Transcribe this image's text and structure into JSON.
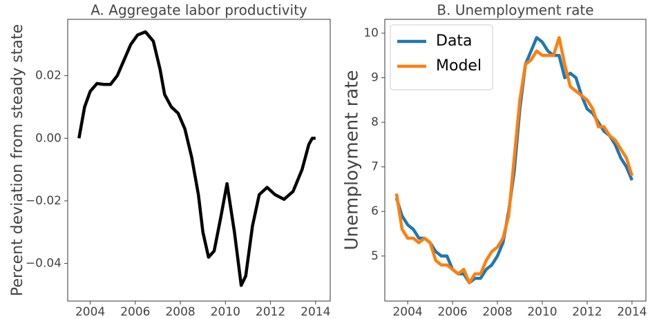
{
  "chart_data": [
    {
      "type": "line",
      "title": "A. Aggregate labor productivity",
      "ylabel": "Percent deviation from steady state",
      "x": [
        2003.5,
        2003.75,
        2004.0,
        2004.3,
        2004.6,
        2004.9,
        2005.2,
        2005.5,
        2005.8,
        2006.1,
        2006.45,
        2006.8,
        2007.1,
        2007.3,
        2007.6,
        2007.9,
        2008.2,
        2008.5,
        2008.8,
        2009.0,
        2009.25,
        2009.5,
        2009.8,
        2010.07,
        2010.4,
        2010.7,
        2010.9,
        2011.2,
        2011.5,
        2011.85,
        2012.2,
        2012.6,
        2013.0,
        2013.4,
        2013.7,
        2013.85,
        2014.0
      ],
      "values": [
        0.0,
        0.01,
        0.015,
        0.0175,
        0.0172,
        0.0172,
        0.02,
        0.025,
        0.03,
        0.033,
        0.034,
        0.031,
        0.022,
        0.014,
        0.01,
        0.008,
        0.003,
        -0.006,
        -0.018,
        -0.03,
        -0.038,
        -0.036,
        -0.025,
        -0.0145,
        -0.03,
        -0.047,
        -0.044,
        -0.028,
        -0.018,
        -0.0157,
        -0.018,
        -0.0195,
        -0.017,
        -0.01,
        -0.002,
        0.0,
        0.0
      ],
      "color": "#000000",
      "xlim": [
        2003.0,
        2014.65
      ],
      "ylim": [
        -0.052,
        0.038
      ],
      "xticks": [
        2004,
        2006,
        2008,
        2010,
        2012,
        2014
      ],
      "yticks": [
        {
          "value": -0.04,
          "label": "−0.04"
        },
        {
          "value": -0.02,
          "label": "−0.02"
        },
        {
          "value": 0,
          "label": "0.00"
        },
        0.02
      ]
    },
    {
      "type": "line",
      "title": "B. Unemployment rate",
      "ylabel": "Unemployment rate",
      "x": [
        2003.5,
        2003.75,
        2004.0,
        2004.25,
        2004.5,
        2004.75,
        2005.0,
        2005.25,
        2005.5,
        2005.75,
        2006.0,
        2006.25,
        2006.5,
        2006.75,
        2007.0,
        2007.25,
        2007.5,
        2007.75,
        2008.0,
        2008.25,
        2008.5,
        2008.75,
        2009.0,
        2009.25,
        2009.5,
        2009.75,
        2010.0,
        2010.25,
        2010.5,
        2010.75,
        2011.0,
        2011.25,
        2011.5,
        2011.75,
        2012.0,
        2012.25,
        2012.5,
        2012.75,
        2013.0,
        2013.25,
        2013.5,
        2013.75,
        2014.0
      ],
      "series": [
        {
          "name": "Data",
          "color": "#1f77b4",
          "values": [
            6.3,
            5.9,
            5.7,
            5.6,
            5.4,
            5.4,
            5.3,
            5.1,
            5.0,
            5.0,
            4.7,
            4.6,
            4.6,
            4.4,
            4.5,
            4.5,
            4.7,
            4.8,
            5.0,
            5.3,
            6.0,
            6.9,
            8.3,
            9.3,
            9.6,
            9.9,
            9.8,
            9.6,
            9.5,
            9.5,
            9.0,
            9.1,
            9.0,
            8.6,
            8.3,
            8.2,
            8.0,
            7.8,
            7.7,
            7.5,
            7.2,
            7.0,
            6.7
          ]
        },
        {
          "name": "Model",
          "color": "#ff7f0e",
          "values": [
            6.4,
            5.6,
            5.4,
            5.4,
            5.3,
            5.4,
            5.3,
            4.9,
            4.8,
            4.8,
            4.7,
            4.6,
            4.7,
            4.4,
            4.6,
            4.6,
            4.9,
            5.1,
            5.2,
            5.4,
            5.9,
            7.2,
            8.5,
            9.3,
            9.4,
            9.6,
            9.5,
            9.5,
            9.5,
            9.9,
            9.3,
            8.8,
            8.7,
            8.6,
            8.5,
            8.3,
            7.9,
            7.9,
            7.7,
            7.6,
            7.4,
            7.2,
            6.8
          ]
        }
      ],
      "legend": "upper left",
      "xlim": [
        2002.98,
        2014.62
      ],
      "ylim": [
        3.99,
        10.31
      ],
      "xticks": [
        2004,
        2006,
        2008,
        2010,
        2012,
        2014
      ],
      "yticks": [
        5,
        6,
        7,
        8,
        9,
        10
      ]
    }
  ]
}
